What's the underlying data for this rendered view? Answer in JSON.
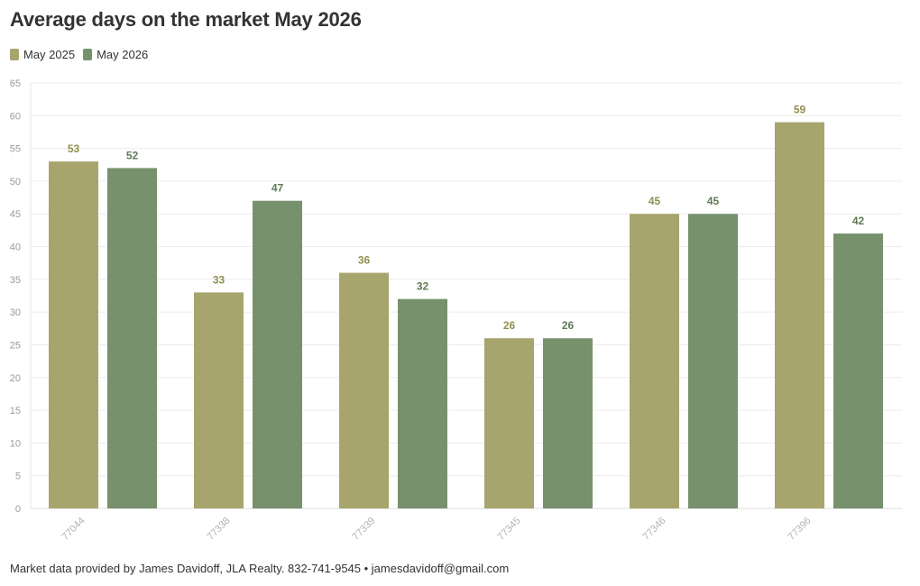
{
  "title": "Average days on the market May 2026",
  "footer": "Market data provided by James Davidoff, JLA Realty. 832-741-9545 • jamesdavidoff@gmail.com",
  "chart_data": {
    "type": "bar",
    "title": "Average days on the market May 2026",
    "categories": [
      "77044",
      "77338",
      "77339",
      "77345",
      "77346",
      "77396"
    ],
    "series": [
      {
        "name": "May 2025",
        "color": "#a7a56d",
        "values": [
          53,
          33,
          36,
          26,
          45,
          59
        ]
      },
      {
        "name": "May 2026",
        "color": "#77916d",
        "values": [
          52,
          47,
          32,
          26,
          45,
          42
        ]
      }
    ],
    "ylim": [
      0,
      65
    ],
    "yticks": [
      0,
      5,
      10,
      15,
      20,
      25,
      30,
      35,
      40,
      45,
      50,
      55,
      60,
      65
    ],
    "xlabel": "",
    "ylabel": "",
    "grid": true,
    "legend": "top-left",
    "data_labels": true
  }
}
